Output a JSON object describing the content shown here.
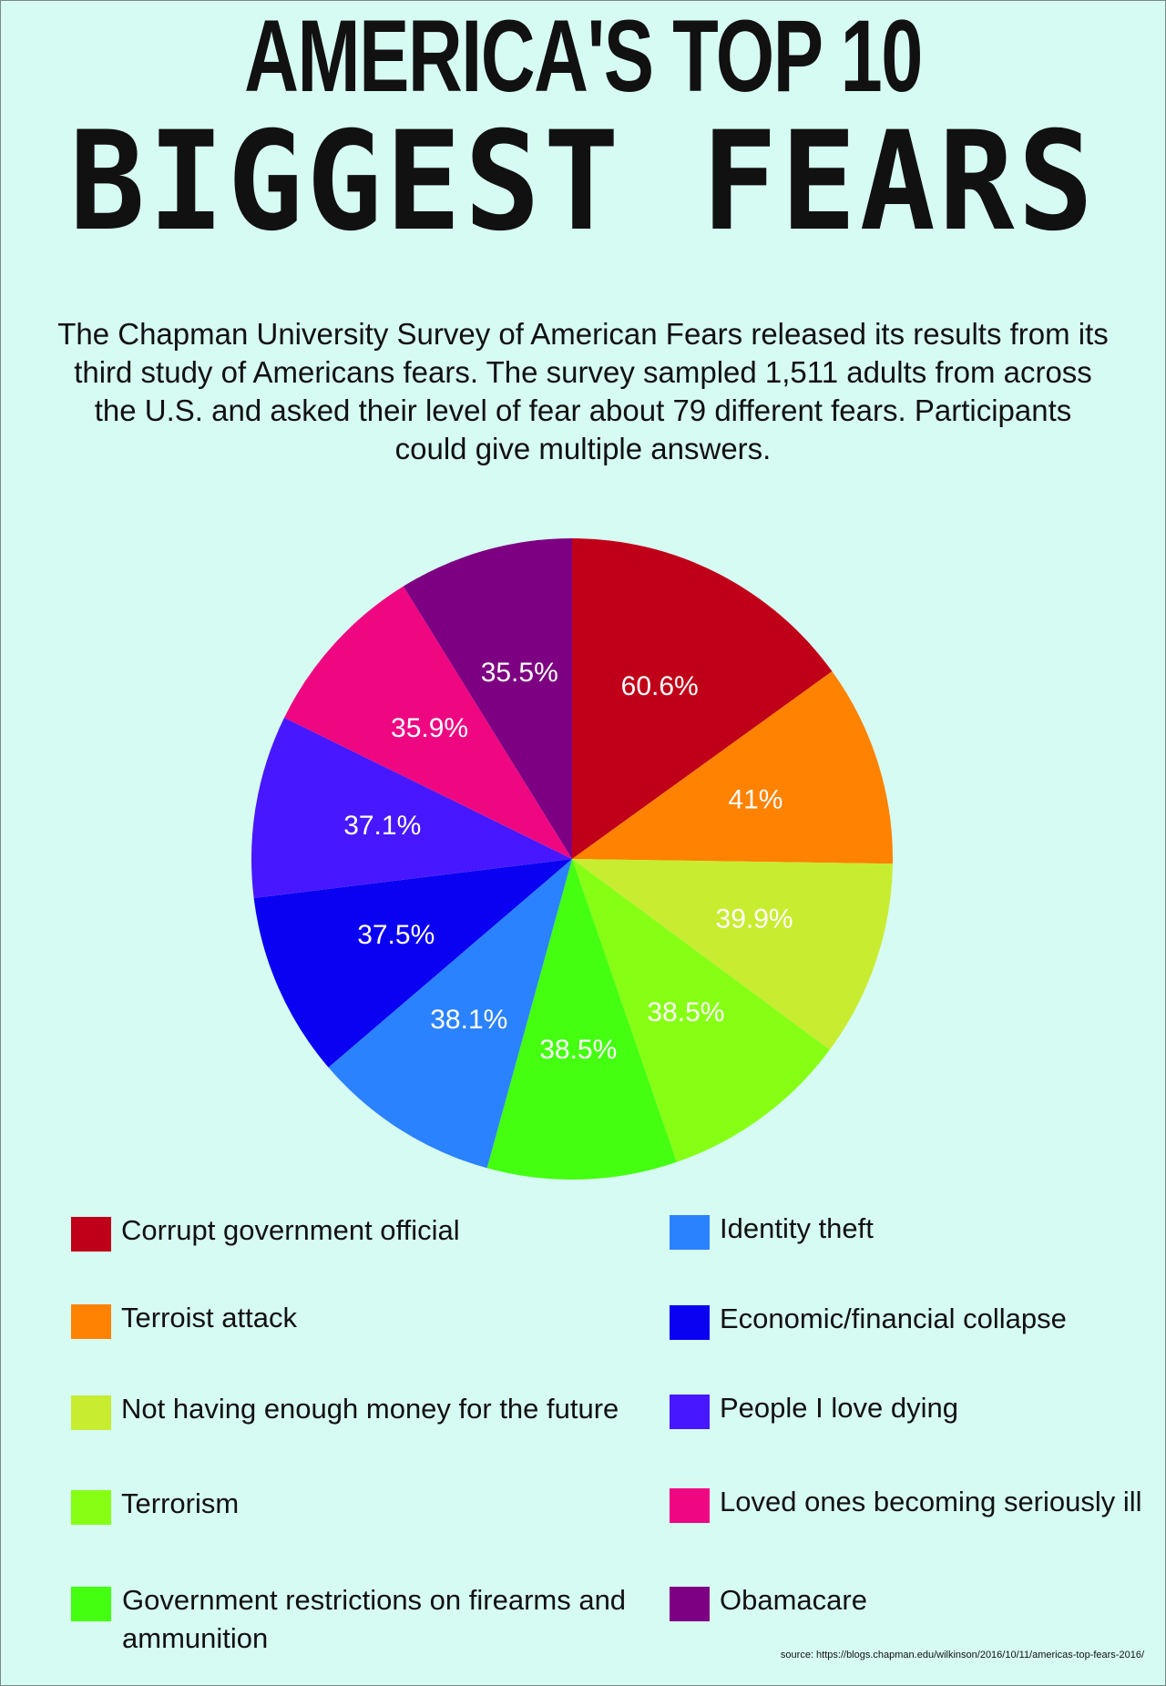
{
  "title": {
    "line1": "AMERICA'S TOP 10",
    "line2": "BIGGEST FEARS"
  },
  "intro": "The Chapman University Survey of American Fears released its results from its third study of Americans fears. The survey sampled 1,511 adults from across the U.S. and asked their level of fear about 79 different fears. Participants could give multiple answers.",
  "chart_data": {
    "type": "pie",
    "title": "America's Top 10 Biggest Fears",
    "categories": [
      "Corrupt government official",
      "Terroist attack",
      "Not having enough money for the future",
      "Terrorism",
      "Government restrictions on firearms and ammunition",
      "Identity theft",
      "Economic/financial collapse",
      "People I love dying",
      "Loved ones becoming seriously ill",
      "Obamacare"
    ],
    "values": [
      60.6,
      41,
      39.9,
      38.5,
      38.5,
      38.1,
      37.5,
      37.1,
      35.9,
      35.5
    ],
    "data_labels": [
      "60.6%",
      "41%",
      "39.9%",
      "38.5%",
      "38.5%",
      "38.1%",
      "37.5%",
      "37.1%",
      "35.9%",
      "35.5%"
    ],
    "colors": [
      "#c00018",
      "#ff8200",
      "#c8ec30",
      "#86ff14",
      "#44ff10",
      "#2b82ff",
      "#0a00f2",
      "#4718ff",
      "#ef0782",
      "#7e0082"
    ],
    "legend_placement": "bottom, two columns"
  },
  "source": "source:  https://blogs.chapman.edu/wilkinson/2016/10/11/americas-top-fears-2016/"
}
